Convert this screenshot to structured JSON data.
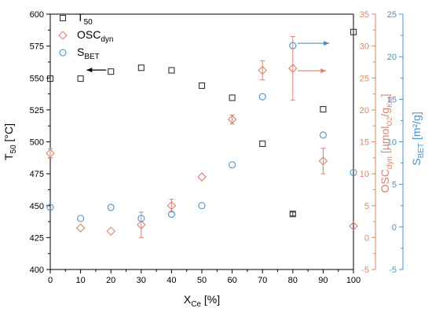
{
  "chart_data": {
    "type": "scatter",
    "x_axis": {
      "label_main": "X",
      "label_sub": "Ce",
      "label_tail": " [%]",
      "range": [
        0,
        100
      ],
      "ticks": [
        "0",
        "10",
        "20",
        "30",
        "40",
        "50",
        "60",
        "70",
        "80",
        "90",
        "100"
      ]
    },
    "y_axes": {
      "left": {
        "label_main": "T",
        "label_sub": "50",
        "label_tail": " [°C]",
        "range": [
          400,
          600
        ],
        "ticks": [
          "400",
          "425",
          "450",
          "475",
          "500",
          "525",
          "550",
          "575",
          "600"
        ],
        "color": "#000000"
      },
      "right1": {
        "label_main": "OSC",
        "label_sub": "dyn",
        "label_mid": " [μmol",
        "label_sub2": "O2",
        "label_mid2": "/g",
        "label_sub3": "Kat",
        "label_tail": "]",
        "range": [
          -5,
          35
        ],
        "ticks": [
          "-5",
          "0",
          "5",
          "10",
          "15",
          "20",
          "25",
          "30",
          "35"
        ],
        "color": "#d9846e"
      },
      "right2": {
        "label_main": "S",
        "label_sub": "BET",
        "label_tail": " [m²/g]",
        "range": [
          -5,
          25
        ],
        "ticks": [
          "-5",
          "0",
          "5",
          "10",
          "15",
          "20",
          "25"
        ],
        "color": "#4f8fc5"
      }
    },
    "series": [
      {
        "name_main": "T",
        "name_sub": "50",
        "axis": "left",
        "marker": "square",
        "color": "#333333",
        "points": [
          {
            "x": 0,
            "y": 549.5,
            "err": 0
          },
          {
            "x": 10,
            "y": 549.5,
            "err": 0
          },
          {
            "x": 20,
            "y": 555,
            "err": 0
          },
          {
            "x": 30,
            "y": 558,
            "err": 0
          },
          {
            "x": 40,
            "y": 556,
            "err": 0
          },
          {
            "x": 50,
            "y": 544,
            "err": 0
          },
          {
            "x": 60,
            "y": 534.5,
            "err": 0
          },
          {
            "x": 70,
            "y": 498.5,
            "err": 0
          },
          {
            "x": 80,
            "y": 443.5,
            "err": 1.5
          },
          {
            "x": 90,
            "y": 525.5,
            "err": 0
          },
          {
            "x": 100,
            "y": 586,
            "err": 0
          }
        ]
      },
      {
        "name_main": "OSC",
        "name_sub": "dyn",
        "axis": "right1",
        "marker": "diamond",
        "color": "#d9846e",
        "points": [
          {
            "x": 0,
            "y": 13.2,
            "err": 0.7
          },
          {
            "x": 10,
            "y": 1.5,
            "err": 0
          },
          {
            "x": 20,
            "y": 1.0,
            "err": 0
          },
          {
            "x": 30,
            "y": 2.0,
            "err": 2.0
          },
          {
            "x": 40,
            "y": 5.0,
            "err": 1.0
          },
          {
            "x": 50,
            "y": 9.5,
            "err": 0
          },
          {
            "x": 60,
            "y": 18.5,
            "err": 0.7
          },
          {
            "x": 70,
            "y": 26.2,
            "err": 1.5
          },
          {
            "x": 80,
            "y": 26.5,
            "err": 5.0
          },
          {
            "x": 90,
            "y": 12.0,
            "err": 2.0
          },
          {
            "x": 100,
            "y": 1.8,
            "err": 0
          }
        ]
      },
      {
        "name_main": "S",
        "name_sub": "BET",
        "axis": "right2",
        "marker": "circle",
        "color": "#4f8fc5",
        "points": [
          {
            "x": 0,
            "y": 2.3,
            "err": 0
          },
          {
            "x": 10,
            "y": 1.0,
            "err": 0
          },
          {
            "x": 20,
            "y": 2.3,
            "err": 0
          },
          {
            "x": 30,
            "y": 1.0,
            "err": 0
          },
          {
            "x": 40,
            "y": 1.5,
            "err": 0
          },
          {
            "x": 50,
            "y": 2.5,
            "err": 0
          },
          {
            "x": 60,
            "y": 7.3,
            "err": 0
          },
          {
            "x": 70,
            "y": 15.3,
            "err": 0
          },
          {
            "x": 80,
            "y": 21.3,
            "err": 0
          },
          {
            "x": 90,
            "y": 10.8,
            "err": 0
          },
          {
            "x": 100,
            "y": 6.4,
            "err": 0
          }
        ]
      }
    ],
    "annotations": [
      {
        "type": "arrow",
        "direction": "left",
        "series": "T50",
        "color": "#000000"
      },
      {
        "type": "arrow",
        "direction": "right",
        "series": "SBET",
        "color": "#4f8fc5"
      },
      {
        "type": "arrow",
        "direction": "right",
        "series": "OSCdyn",
        "color": "#d9846e"
      }
    ],
    "legend_position": "top-left",
    "grid": false
  }
}
